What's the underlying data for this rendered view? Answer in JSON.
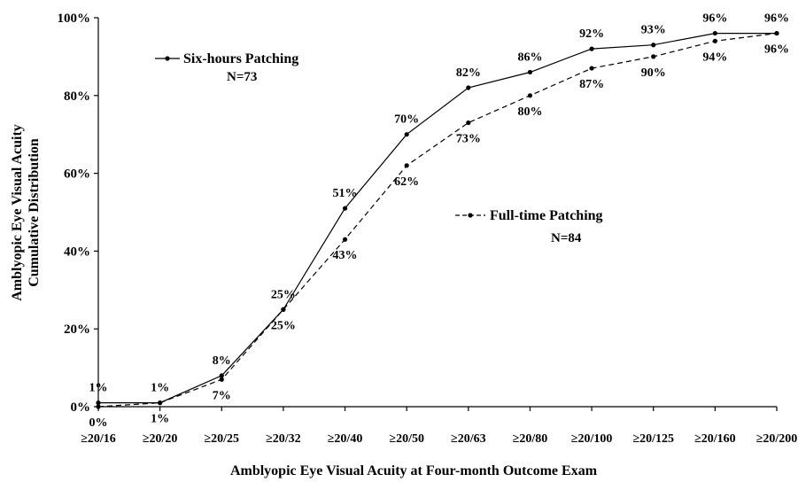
{
  "chart_data": {
    "type": "line",
    "title": "",
    "xlabel": "Amblyopic Eye Visual Acuity at Four-month Outcome Exam",
    "ylabel_line1": "Amblyopic Eye Visual Acuity",
    "ylabel_line2": "Cumulative Distribution",
    "categories": [
      "≥20/16",
      "≥20/20",
      "≥20/25",
      "≥20/32",
      "≥20/40",
      "≥20/50",
      "≥20/63",
      "≥20/80",
      "≥20/100",
      "≥20/125",
      "≥20/160",
      "≥20/200"
    ],
    "yticks": [
      "0%",
      "20%",
      "40%",
      "60%",
      "80%",
      "100%"
    ],
    "ylim": [
      0,
      100
    ],
    "grid": false,
    "series": [
      {
        "name": "Six-hours Patching",
        "n_label": "N=73",
        "style": "solid",
        "values": [
          1,
          1,
          8,
          25,
          51,
          70,
          82,
          86,
          92,
          93,
          96,
          96
        ],
        "labels": [
          "1%",
          "1%",
          "8%",
          "25%",
          "51%",
          "70%",
          "82%",
          "86%",
          "92%",
          "93%",
          "96%",
          "96%"
        ]
      },
      {
        "name": "Full-time Patching",
        "n_label": "N=84",
        "style": "dashed",
        "values": [
          0,
          1,
          7,
          25,
          43,
          62,
          73,
          80,
          87,
          90,
          94,
          96
        ],
        "labels": [
          "0%",
          "1%",
          "7%",
          "25%",
          "43%",
          "62%",
          "73%",
          "80%",
          "87%",
          "90%",
          "94%",
          "96%"
        ]
      }
    ]
  }
}
